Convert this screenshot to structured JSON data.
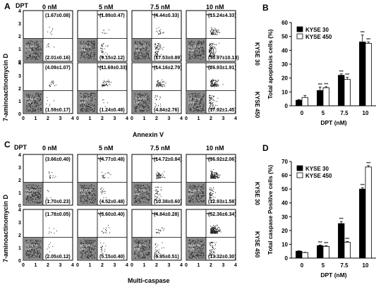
{
  "panel_labels": {
    "a": "A",
    "b": "B",
    "c": "C",
    "d": "D"
  },
  "dpt_label": "DPT",
  "concentrations": [
    "0 nM",
    "5 nM",
    "7.5 nM",
    "10 nM"
  ],
  "cell_lines": [
    "KYSE 30",
    "KYSE 450"
  ],
  "flow_top": {
    "y_axis_label": "7-aminoactinomycin D",
    "x_axis_label": "Annexin V",
    "rows": [
      {
        "ur": [
          "(1.67±0.08)",
          "(1.89±0.47)",
          "(4.44±0.33)",
          "(15.24±4.33)"
        ],
        "lr": [
          "(2.01±0.16)",
          "(9.15±2.12)",
          "(17.53±0.89)",
          "(30.97±10.13)"
        ],
        "live": [
          "96.87 %",
          "88.56 %",
          "77.52 %",
          "53.79 %"
        ]
      },
      {
        "ur": [
          "(4.09±1.07)",
          "(11.69±0.33)",
          "(14.16±2.79)",
          "(26.93±1.91)"
        ],
        "lr": [
          "(1.59±0.17)",
          "(1.24±0.48)",
          "(4.84±2.76)",
          "(17.92±1.45)"
        ],
        "live": [
          "94.40 %",
          "86.62 %",
          "79.49 %",
          "54.74 %"
        ]
      }
    ]
  },
  "flow_bottom": {
    "y_axis_label": "7-aminoactinomycin D",
    "x_axis_label": "Multi-caspase",
    "rows": [
      {
        "ur": [
          "(3.66±0.40)",
          "(4.77±0.48)",
          "(14.72±0.84)",
          "(36.92±2.06)"
        ],
        "lr": [
          "(1.70±0.23)",
          "(4.52±0.48)",
          "(10.38±0.60)",
          "(12.93±1.58)"
        ],
        "live": [
          "94.63 %",
          "90.66 %",
          "71.75 %",
          "48.91 %"
        ]
      },
      {
        "ur": [
          "(1.78±0.05)",
          "(3.60±0.40)",
          "(4.84±0.28)",
          "(52.36±6.34)"
        ],
        "lr": [
          "(2.05±0.12)",
          "(5.15±0.40)",
          "(6.95±0.51)",
          "(13.32±0.30)"
        ],
        "live": [
          "96.06 %",
          "91.00 %",
          "87.99 %",
          "33.96 %"
        ]
      }
    ]
  },
  "flow_axis_ticks": [
    "0",
    "1",
    "2",
    "3",
    "4"
  ],
  "live_word": "Live",
  "sig_marks": [
    "***",
    "**",
    "*"
  ],
  "chart_data": [
    {
      "type": "bar",
      "title": "",
      "categories": [
        "0",
        "5",
        "7.5",
        "10"
      ],
      "series": [
        {
          "name": "KYSE 30",
          "values": [
            4,
            11,
            22,
            46
          ],
          "errors": [
            0.5,
            2.5,
            1.0,
            5.0
          ]
        },
        {
          "name": "KYSE 450",
          "values": [
            6,
            13,
            19,
            45
          ],
          "errors": [
            1.5,
            0.8,
            1.5,
            1.0
          ]
        }
      ],
      "xlabel": "DPT (nM)",
      "ylabel": "Total apoptosis cells (%)",
      "ylim": [
        0,
        60
      ],
      "yticks": [
        "0",
        "10",
        "20",
        "30",
        "40",
        "50",
        "60"
      ],
      "legend": "top-left",
      "grid": false
    },
    {
      "type": "bar",
      "title": "",
      "categories": [
        "0",
        "5",
        "7.5",
        "10"
      ],
      "series": [
        {
          "name": "KYSE 30",
          "values": [
            5,
            9,
            25,
            50
          ],
          "errors": [
            0.3,
            0.5,
            1.5,
            1.0
          ]
        },
        {
          "name": "KYSE 450",
          "values": [
            4,
            8.5,
            11.5,
            66
          ],
          "errors": [
            0.2,
            0.4,
            0.5,
            1.0
          ]
        }
      ],
      "xlabel": "DPT (nM)",
      "ylabel": "Total caspase Positive cells (%)",
      "ylim": [
        0,
        70
      ],
      "yticks": [
        "0",
        "10",
        "20",
        "30",
        "40",
        "50",
        "60",
        "70"
      ],
      "legend": "top-left",
      "grid": false
    }
  ]
}
